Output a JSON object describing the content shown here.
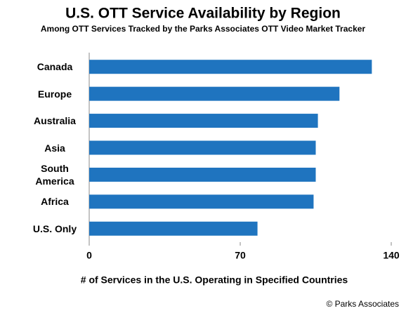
{
  "chart_data": {
    "type": "hbar",
    "title": "U.S. OTT Service Availability by Region",
    "subtitle": "Among OTT Services Tracked by the Parks Associates OTT Video Market Tracker",
    "x_label": "# of Services in the U.S. Operating in Specified Countries",
    "source": "© Parks Associates",
    "categories": [
      "Canada",
      "Europe",
      "Australia",
      "Asia",
      "South America",
      "Africa",
      "U.S. Only"
    ],
    "values": [
      131,
      116,
      106,
      105,
      105,
      104,
      78
    ],
    "color": "#1f74bf",
    "xlim": [
      0,
      140
    ],
    "xticks": [
      0,
      70,
      140
    ],
    "grid": false
  }
}
